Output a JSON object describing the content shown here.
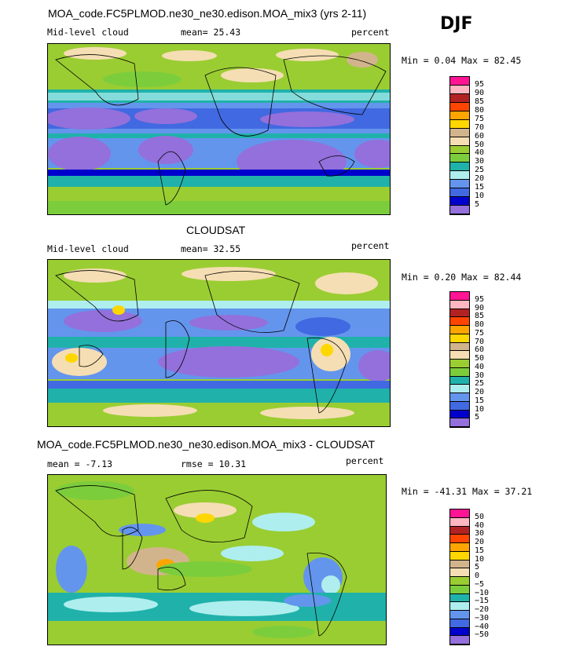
{
  "season": "DJF",
  "chart_data": [
    {
      "type": "heatmap",
      "title": "MOA_code.FC5PLMOD.ne30_ne30.edison.MOA_mix3 (yrs 2-11)",
      "variable": "Mid-level cloud",
      "mean_text": "mean=  25.43",
      "units": "percent",
      "min_max_text": "Min =   0.04 Max =  82.45",
      "min": 0.04,
      "max": 82.45,
      "mean": 25.43,
      "colorbar": {
        "labels": [
          "95",
          "90",
          "85",
          "80",
          "75",
          "70",
          "60",
          "50",
          "40",
          "30",
          "25",
          "20",
          "15",
          "10",
          "5"
        ],
        "colors": [
          "#ff1493",
          "#ffb6c1",
          "#b22222",
          "#ff4500",
          "#ffa500",
          "#ffd700",
          "#d2b48c",
          "#f5deb3",
          "#9acd32",
          "#7ccd3c",
          "#20b2aa",
          "#afeeee",
          "#6495ed",
          "#4169e1",
          "#0000cd",
          "#9370db"
        ]
      }
    },
    {
      "type": "heatmap",
      "title": "CLOUDSAT",
      "variable": "Mid-level cloud",
      "mean_text": "mean=  32.55",
      "units": "percent",
      "min_max_text": "Min =   0.20 Max =  82.44",
      "min": 0.2,
      "max": 82.44,
      "mean": 32.55,
      "colorbar": {
        "labels": [
          "95",
          "90",
          "85",
          "80",
          "75",
          "70",
          "60",
          "50",
          "40",
          "30",
          "25",
          "20",
          "15",
          "10",
          "5"
        ],
        "colors": [
          "#ff1493",
          "#ffb6c1",
          "#b22222",
          "#ff4500",
          "#ffa500",
          "#ffd700",
          "#d2b48c",
          "#f5deb3",
          "#9acd32",
          "#7ccd3c",
          "#20b2aa",
          "#afeeee",
          "#6495ed",
          "#4169e1",
          "#0000cd",
          "#9370db"
        ]
      }
    },
    {
      "type": "heatmap",
      "title": "MOA_code.FC5PLMOD.ne30_ne30.edison.MOA_mix3 - CLOUDSAT",
      "mean_text": "mean =  -7.13",
      "rmse_text": "rmse =  10.31",
      "units": "percent",
      "min_max_text": "Min = -41.31 Max =  37.21",
      "min": -41.31,
      "max": 37.21,
      "mean": -7.13,
      "rmse": 10.31,
      "colorbar": {
        "labels": [
          "50",
          "40",
          "30",
          "20",
          "15",
          "10",
          "5",
          "0",
          "−5",
          "−10",
          "−15",
          "−20",
          "−30",
          "−40",
          "−50"
        ],
        "colors": [
          "#ff1493",
          "#ffb6c1",
          "#b22222",
          "#ff4500",
          "#ffa500",
          "#ffd700",
          "#d2b48c",
          "#f5deb3",
          "#9acd32",
          "#7ccd3c",
          "#20b2aa",
          "#afeeee",
          "#6495ed",
          "#4169e1",
          "#0000cd",
          "#9370db"
        ]
      }
    }
  ]
}
